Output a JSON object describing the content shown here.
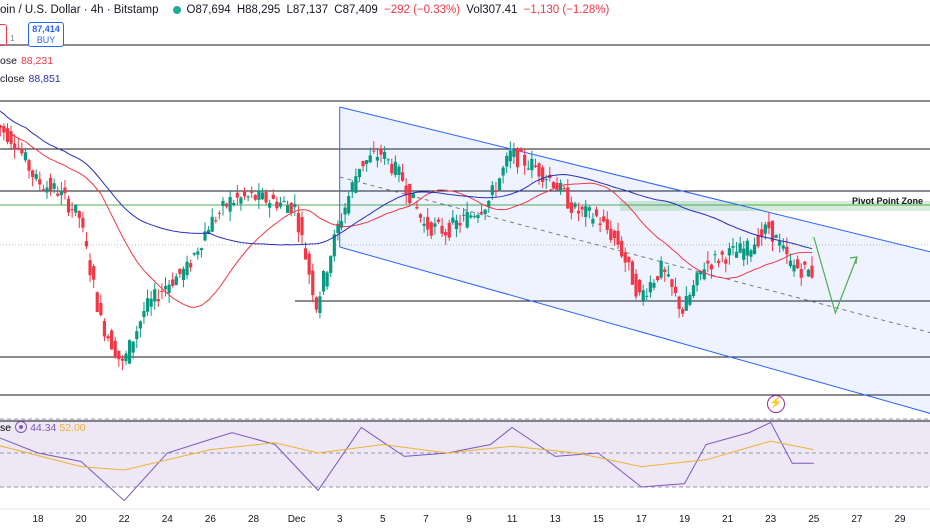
{
  "header": {
    "title": "oin / U.S. Dollar · 4h · Bitstamp",
    "ohlc": [
      "O87,694",
      "H88,295",
      "L87,137",
      "C87,409",
      "−292 (−0.33%)",
      "Vol307.41",
      "−1,130 (−1.28%)"
    ],
    "status_color": "#22ab94"
  },
  "trade": {
    "buy_price": "87,414",
    "buy_label": "BUY",
    "side_value": "1"
  },
  "indicators": [
    {
      "label": "ose",
      "value": "88,231",
      "color": "#f23645"
    },
    {
      "label": "close",
      "value": "88,851",
      "color": "#2a2eb8"
    }
  ],
  "rsi": {
    "label": "se",
    "value": "44.34",
    "ma_value": "52.00",
    "colors": {
      "rsi": "#7e57c2",
      "ma": "#f0b232",
      "band_fill": "#ede7f6"
    }
  },
  "annotations": {
    "pivot_zone_label": "Pivot Point Zone"
  },
  "icons": {
    "bolt": "lightning-bolt-icon"
  },
  "chart_data": {
    "type": "line",
    "title": "",
    "x_axis_labels": [
      "18",
      "20",
      "22",
      "24",
      "26",
      "28",
      "Dec",
      "3",
      "5",
      "7",
      "9",
      "11",
      "13",
      "15",
      "17",
      "19",
      "21",
      "23",
      "25",
      "27",
      "29"
    ],
    "price_path": [
      [
        "Nov 16",
        95000
      ],
      [
        "Nov 17",
        94000
      ],
      [
        "Nov 18",
        92000
      ],
      [
        "Nov 19",
        91500
      ],
      [
        "Nov 20",
        90200
      ],
      [
        "Nov 21",
        85000
      ],
      [
        "Nov 22",
        82800
      ],
      [
        "Nov 23",
        85500
      ],
      [
        "Nov 24",
        86800
      ],
      [
        "Nov 25",
        87600
      ],
      [
        "Nov 26",
        89800
      ],
      [
        "Nov 27",
        91000
      ],
      [
        "Nov 28",
        91200
      ],
      [
        "Nov 29",
        91000
      ],
      [
        "Nov 30",
        90700
      ],
      [
        "Dec 1",
        85800
      ],
      [
        "Dec 2",
        89700
      ],
      [
        "Dec 3",
        92800
      ],
      [
        "Dec 4",
        93400
      ],
      [
        "Dec 5",
        92100
      ],
      [
        "Dec 6",
        89800
      ],
      [
        "Dec 7",
        89500
      ],
      [
        "Dec 8",
        90200
      ],
      [
        "Dec 9",
        91000
      ],
      [
        "Dec 10",
        93300
      ],
      [
        "Dec 11",
        92800
      ],
      [
        "Dec 12",
        92000
      ],
      [
        "Dec 13",
        90500
      ],
      [
        "Dec 14",
        90200
      ],
      [
        "Dec 15",
        88900
      ],
      [
        "Dec 16",
        86200
      ],
      [
        "Dec 17",
        87600
      ],
      [
        "Dec 18",
        85500
      ],
      [
        "Dec 19",
        87800
      ],
      [
        "Dec 20",
        88300
      ],
      [
        "Dec 21",
        88600
      ],
      [
        "Dec 22",
        89700
      ],
      [
        "Dec 23",
        87800
      ],
      [
        "Dec 24",
        87409
      ]
    ],
    "projection_path": [
      [
        "Dec 24",
        89200
      ],
      [
        "Dec 25",
        85400
      ],
      [
        "Dec 26",
        88200
      ]
    ],
    "horizontal_levels": [
      98800,
      96000,
      93600,
      91500,
      86000,
      83200,
      80000
    ],
    "pivot_zone": [
      90600,
      90900
    ],
    "channel": {
      "upper": [
        [
          "Dec 2",
          95700
        ],
        [
          "Dec 30",
          88300
        ]
      ],
      "lower": [
        [
          "Dec 2",
          88700
        ],
        [
          "Dec 30",
          80200
        ]
      ]
    },
    "ma_fast_label": "ose 88,231",
    "ma_slow_label": "close 88,851",
    "rsi_series": [
      [
        "Nov 16",
        60
      ],
      [
        "Nov 18",
        50
      ],
      [
        "Nov 20",
        45
      ],
      [
        "Nov 22",
        22
      ],
      [
        "Nov 24",
        50
      ],
      [
        "Nov 26",
        58
      ],
      [
        "Nov 27",
        62
      ],
      [
        "Nov 29",
        55
      ],
      [
        "Dec 1",
        28
      ],
      [
        "Dec 3",
        65
      ],
      [
        "Dec 5",
        48
      ],
      [
        "Dec 7",
        50
      ],
      [
        "Dec 9",
        55
      ],
      [
        "Dec 10",
        65
      ],
      [
        "Dec 12",
        48
      ],
      [
        "Dec 14",
        50
      ],
      [
        "Dec 16",
        30
      ],
      [
        "Dec 18",
        32
      ],
      [
        "Dec 19",
        55
      ],
      [
        "Dec 21",
        62
      ],
      [
        "Dec 22",
        68
      ],
      [
        "Dec 23",
        44
      ],
      [
        "Dec 24",
        44
      ]
    ],
    "rsi_ma_series": [
      [
        "Nov 16",
        55
      ],
      [
        "Nov 20",
        42
      ],
      [
        "Nov 22",
        40
      ],
      [
        "Nov 26",
        52
      ],
      [
        "Nov 29",
        56
      ],
      [
        "Dec 1",
        50
      ],
      [
        "Dec 4",
        55
      ],
      [
        "Dec 7",
        50
      ],
      [
        "Dec 10",
        54
      ],
      [
        "Dec 13",
        50
      ],
      [
        "Dec 16",
        42
      ],
      [
        "Dec 19",
        46
      ],
      [
        "Dec 22",
        57
      ],
      [
        "Dec 24",
        52
      ]
    ],
    "rsi_levels": [
      70,
      50,
      30
    ],
    "grid": false
  }
}
